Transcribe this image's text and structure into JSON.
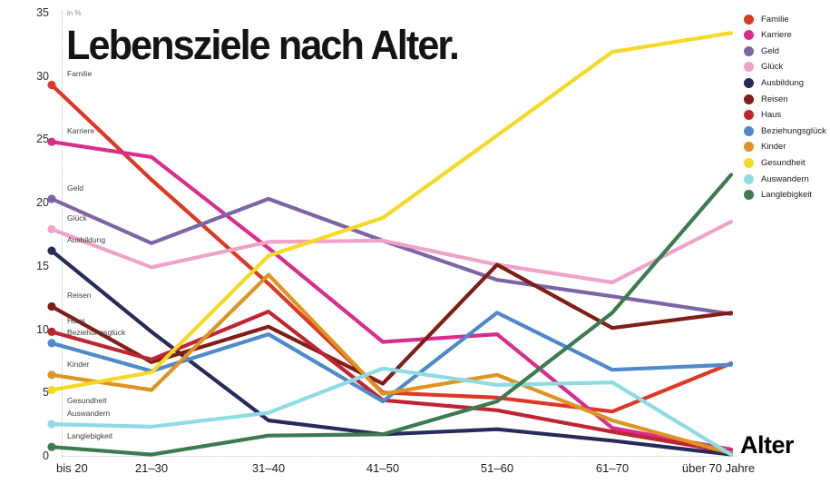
{
  "title": "Lebensziele nach Alter.",
  "unit_label": "in %",
  "x_axis_title": "Alter",
  "chart_data": {
    "type": "line",
    "categories": [
      "bis 20",
      "21–30",
      "31–40",
      "41–50",
      "51–60",
      "61–70",
      "über 70 Jahre"
    ],
    "xlabel": "Alter",
    "ylabel": "in %",
    "ylim": [
      0,
      35
    ],
    "yticks": [
      0,
      5,
      10,
      15,
      20,
      25,
      30,
      35
    ],
    "grid": false,
    "legend_position": "top-right",
    "series": [
      {
        "name": "Familie",
        "color": "#dd3826",
        "values": [
          29.3,
          21.8,
          13.6,
          5.0,
          4.6,
          3.5,
          7.3
        ]
      },
      {
        "name": "Karriere",
        "color": "#d72e8d",
        "values": [
          24.8,
          23.6,
          16.4,
          9.0,
          9.6,
          2.2,
          0.5
        ]
      },
      {
        "name": "Geld",
        "color": "#7d64a5",
        "values": [
          20.3,
          16.8,
          20.3,
          17.0,
          13.9,
          12.6,
          11.2
        ]
      },
      {
        "name": "Glück",
        "color": "#efa3c8",
        "values": [
          17.9,
          14.9,
          16.9,
          17.0,
          15.1,
          13.7,
          18.5
        ]
      },
      {
        "name": "Ausbildung",
        "color": "#272a5b",
        "values": [
          16.2,
          9.8,
          2.8,
          1.7,
          2.1,
          1.2,
          0.1
        ]
      },
      {
        "name": "Reisen",
        "color": "#801d15",
        "values": [
          11.8,
          7.4,
          10.2,
          5.7,
          15.1,
          10.1,
          11.3
        ]
      },
      {
        "name": "Haus",
        "color": "#bf2430",
        "values": [
          9.8,
          7.6,
          11.4,
          4.4,
          3.6,
          1.9,
          0.3
        ]
      },
      {
        "name": "Beziehungsglück",
        "color": "#4d89cb",
        "values": [
          8.9,
          6.7,
          9.6,
          4.3,
          11.3,
          6.8,
          7.2
        ]
      },
      {
        "name": "Kinder",
        "color": "#dd9420",
        "values": [
          6.4,
          5.2,
          14.3,
          4.9,
          6.4,
          2.8,
          0.2
        ]
      },
      {
        "name": "Gesundheit",
        "color": "#f6d924",
        "values": [
          5.2,
          6.6,
          15.8,
          18.8,
          25.3,
          31.9,
          33.4
        ],
        "label_below": true
      },
      {
        "name": "Auswandern",
        "color": "#8edbe3",
        "values": [
          2.5,
          2.3,
          3.4,
          6.9,
          5.6,
          5.8,
          0.1
        ]
      },
      {
        "name": "Langlebigkeit",
        "color": "#3c7b50",
        "values": [
          0.7,
          0.1,
          1.6,
          1.7,
          4.3,
          11.3,
          22.2
        ]
      }
    ]
  }
}
